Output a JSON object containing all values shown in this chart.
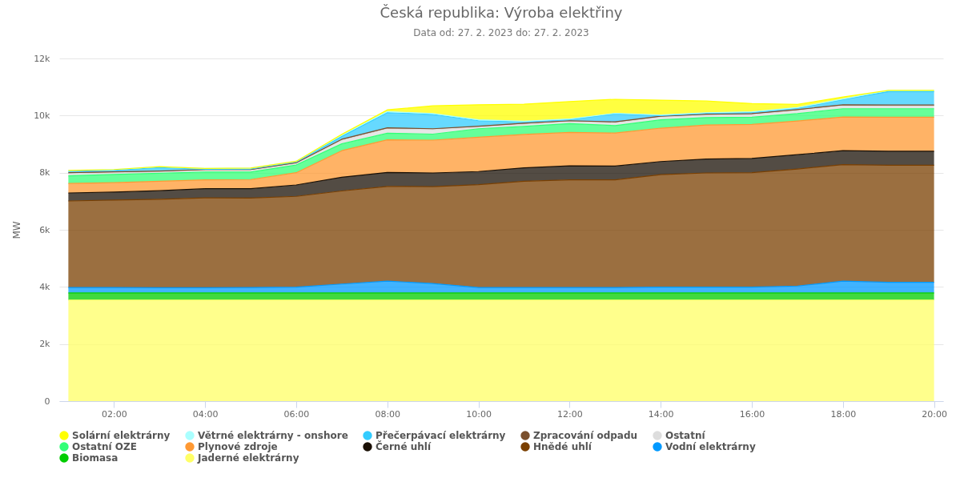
{
  "chart_data": {
    "type": "area",
    "title": "Česká republika: Výroba elektřiny",
    "subtitle": "Data od: 27. 2. 2023 do: 27. 2. 2023",
    "ylabel": "MW",
    "stacked": true,
    "grid": "y",
    "legend": "bottom",
    "x": [
      1,
      2,
      3,
      4,
      5,
      6,
      7,
      8,
      9,
      10,
      11,
      12,
      13,
      14,
      15,
      16,
      17,
      18,
      19,
      20
    ],
    "xlim": [
      0.8,
      20.2
    ],
    "xticks": [
      {
        "value": 2,
        "label": "02:00"
      },
      {
        "value": 4,
        "label": "04:00"
      },
      {
        "value": 6,
        "label": "06:00"
      },
      {
        "value": 8,
        "label": "08:00"
      },
      {
        "value": 10,
        "label": "10:00"
      },
      {
        "value": 12,
        "label": "12:00"
      },
      {
        "value": 14,
        "label": "14:00"
      },
      {
        "value": 16,
        "label": "16:00"
      },
      {
        "value": 18,
        "label": "18:00"
      },
      {
        "value": 20,
        "label": "20:00"
      }
    ],
    "ylim": [
      0,
      12000
    ],
    "yticks": [
      0,
      {
        "value": 2000,
        "label": "2k"
      },
      {
        "value": 4000,
        "label": "4k"
      },
      {
        "value": 6000,
        "label": "6k"
      },
      {
        "value": 8000,
        "label": "8k"
      },
      {
        "value": 10000,
        "label": "10k"
      },
      {
        "value": 12000,
        "label": "12k"
      }
    ],
    "series": [
      {
        "name": "Jaderné elektrárny",
        "color": "#ffff66",
        "values": [
          3540,
          3540,
          3540,
          3540,
          3540,
          3540,
          3540,
          3540,
          3540,
          3540,
          3540,
          3540,
          3540,
          3540,
          3540,
          3540,
          3540,
          3540,
          3540,
          3540
        ]
      },
      {
        "name": "Biomasa",
        "color": "#00cc00",
        "values": [
          250,
          250,
          250,
          250,
          250,
          250,
          250,
          250,
          250,
          250,
          250,
          250,
          250,
          250,
          250,
          250,
          250,
          250,
          250,
          250
        ]
      },
      {
        "name": "Vodní elektrárny",
        "color": "#0099ff",
        "values": [
          190,
          190,
          180,
          180,
          190,
          200,
          310,
          410,
          330,
          190,
          190,
          190,
          190,
          200,
          200,
          200,
          240,
          410,
          370,
          370
        ]
      },
      {
        "name": "Hnědé uhlí",
        "color": "#7a3f00",
        "values": [
          3030,
          3060,
          3100,
          3150,
          3130,
          3180,
          3260,
          3320,
          3390,
          3600,
          3720,
          3770,
          3770,
          3940,
          4000,
          4010,
          4100,
          4080,
          4100,
          4100
        ]
      },
      {
        "name": "Černé uhlí",
        "color": "#1a1005",
        "values": [
          280,
          280,
          300,
          320,
          330,
          400,
          480,
          490,
          480,
          460,
          470,
          490,
          480,
          460,
          490,
          500,
          500,
          490,
          490,
          490
        ]
      },
      {
        "name": "Plynové zdroje",
        "color": "#ff9933",
        "values": [
          330,
          330,
          330,
          310,
          320,
          430,
          930,
          1140,
          1150,
          1200,
          1170,
          1170,
          1160,
          1170,
          1190,
          1190,
          1180,
          1180,
          1190,
          1190
        ]
      },
      {
        "name": "Ostatní OZE",
        "color": "#33ff77",
        "values": [
          270,
          290,
          280,
          270,
          260,
          270,
          240,
          230,
          210,
          300,
          280,
          310,
          260,
          290,
          260,
          250,
          260,
          290,
          300,
          300
        ]
      },
      {
        "name": "Ostatní",
        "color": "#dddddd",
        "values": [
          80,
          60,
          50,
          60,
          60,
          50,
          130,
          160,
          160,
          60,
          80,
          70,
          100,
          100,
          90,
          100,
          110,
          110,
          100,
          100
        ]
      },
      {
        "name": "Zpracování odpadu",
        "color": "#7a4f2c",
        "values": [
          30,
          30,
          30,
          30,
          30,
          30,
          30,
          30,
          30,
          30,
          30,
          30,
          30,
          30,
          30,
          30,
          30,
          30,
          30,
          30
        ]
      },
      {
        "name": "Přečerpávací elektrárny",
        "color": "#33ccff",
        "values": [
          50,
          50,
          120,
          10,
          20,
          30,
          100,
          530,
          500,
          190,
          50,
          40,
          280,
          20,
          30,
          40,
          50,
          180,
          470,
          470
        ]
      },
      {
        "name": "Větrné elektrárny - onshore",
        "color": "#aaffff",
        "values": [
          30,
          30,
          30,
          30,
          30,
          20,
          40,
          40,
          30,
          30,
          20,
          20,
          20,
          20,
          20,
          20,
          20,
          20,
          40,
          40
        ]
      },
      {
        "name": "Solární elektrárny",
        "color": "#ffff00",
        "values": [
          0,
          0,
          0,
          0,
          0,
          0,
          30,
          60,
          270,
          530,
          600,
          610,
          490,
          520,
          410,
          290,
          110,
          70,
          0,
          0
        ]
      }
    ]
  }
}
